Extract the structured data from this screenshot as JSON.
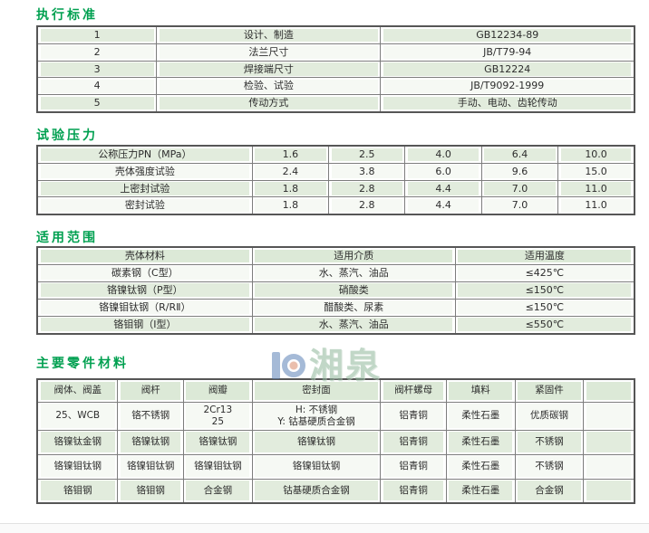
{
  "colors": {
    "accent_green": "#00a050",
    "row_green": "#e2ecdd",
    "header_green": "#dce9d7",
    "border_dark": "#565656"
  },
  "watermark": {
    "brand": "湘泉",
    "logo": "bar-and-ring-logo"
  },
  "sections": [
    {
      "id": "standards",
      "title": "执行标准",
      "table": {
        "rows": [
          [
            "1",
            "设计、制造",
            "GB12234-89"
          ],
          [
            "2",
            "法兰尺寸",
            "JB/T79-94"
          ],
          [
            "3",
            "焊接端尺寸",
            "GB12224"
          ],
          [
            "4",
            "检验、试验",
            "JB/T9092-1999"
          ],
          [
            "5",
            "传动方式",
            "手动、电动、齿轮传动"
          ]
        ]
      }
    },
    {
      "id": "test-pressure",
      "title": "试验压力",
      "table": {
        "rows": [
          [
            "公称压力PN（MPa）",
            "1.6",
            "2.5",
            "4.0",
            "6.4",
            "10.0"
          ],
          [
            "壳体强度试验",
            "2.4",
            "3.8",
            "6.0",
            "9.6",
            "15.0"
          ],
          [
            "上密封试验",
            "1.8",
            "2.8",
            "4.4",
            "7.0",
            "11.0"
          ],
          [
            "密封试验",
            "1.8",
            "2.8",
            "4.4",
            "7.0",
            "11.0"
          ]
        ]
      }
    },
    {
      "id": "application-range",
      "title": "适用范围",
      "table": {
        "header": [
          "壳体材料",
          "适用介质",
          "适用温度"
        ],
        "rows": [
          [
            "碳素钢（C型）",
            "水、蒸汽、油品",
            "≤425℃"
          ],
          [
            "铬镍钛钢（P型）",
            "硝酸类",
            "≤150℃"
          ],
          [
            "铬镍钼钛钢（R/RⅡ）",
            "醋酸类、尿素",
            "≤150℃"
          ],
          [
            "铬钼钢（I型）",
            "水、蒸汽、油品",
            "≤550℃"
          ]
        ]
      }
    },
    {
      "id": "main-parts-materials",
      "title": "主要零件材料",
      "table": {
        "header": [
          "阀体、阀盖",
          "阀杆",
          "阀瓣",
          "密封面",
          "阀杆螺母",
          "填料",
          "紧固件",
          ""
        ],
        "rows": [
          [
            "25、WCB",
            "铬不锈钢",
            "2Cr13\n25",
            "H: 不锈钢\nY: 钴基硬质合金钢",
            "铝青铜",
            "柔性石墨",
            "优质碳钢",
            ""
          ],
          [
            "铬镍钛金钢",
            "铬镍钛钢",
            "铬镍钛钢",
            "铬镍钛钢",
            "铝青铜",
            "柔性石墨",
            "不锈钢",
            ""
          ],
          [
            "铬镍钼钛钢",
            "铬镍钼钛钢",
            "铬镍钼钛钢",
            "铬镍钼钛钢",
            "铝青铜",
            "柔性石墨",
            "不锈钢",
            ""
          ],
          [
            "铬钼钢",
            "铬钼钢",
            "合金钢",
            "钴基硬质合金钢",
            "铝青铜",
            "柔性石墨",
            "合金钢",
            ""
          ]
        ]
      }
    }
  ]
}
